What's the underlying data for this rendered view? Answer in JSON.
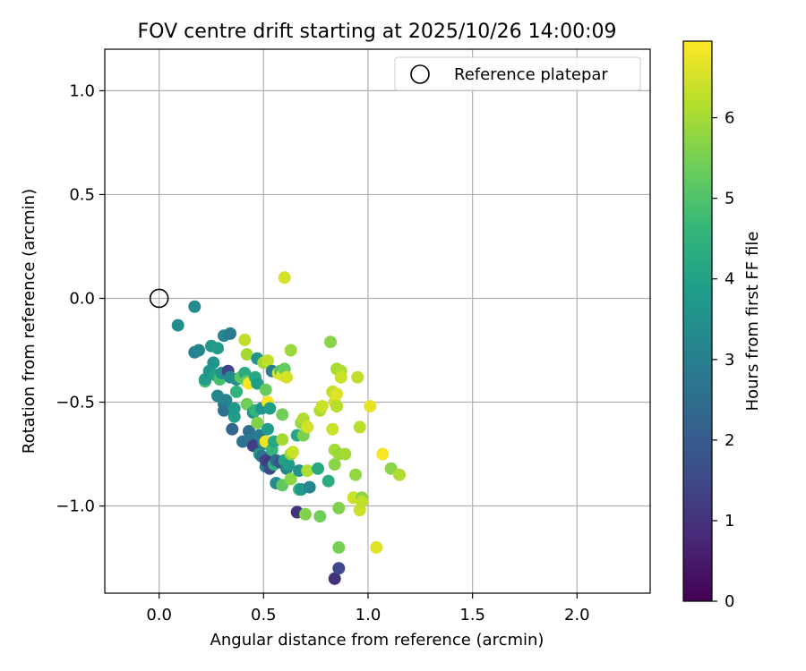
{
  "chart_data": {
    "type": "scatter",
    "title": "FOV centre drift starting at 2025/10/26 14:00:09",
    "xlabel": "Angular distance from reference (arcmin)",
    "ylabel": "Rotation from reference (arcmin)",
    "xlim": [
      -0.26,
      2.35
    ],
    "ylim": [
      -1.42,
      1.2
    ],
    "xticks": [
      0.0,
      0.5,
      1.0,
      1.5,
      2.0
    ],
    "xtick_labels": [
      "0.0",
      "0.5",
      "1.0",
      "1.5",
      "2.0"
    ],
    "yticks": [
      1.0,
      0.5,
      0.0,
      -0.5,
      -1.0
    ],
    "ytick_labels": [
      "1.0",
      "0.5",
      "0.0",
      "−0.5",
      "−1.0"
    ],
    "grid": true,
    "legend": {
      "position": "top-right",
      "entries": [
        {
          "label": "Reference platepar",
          "marker": "open-circle",
          "x": 0.0,
          "y": 0.0
        }
      ]
    },
    "colorbar": {
      "label": "Hours from first FF file",
      "colormap": "viridis",
      "range": [
        0,
        6.95
      ],
      "ticks": [
        0,
        1,
        2,
        3,
        4,
        5,
        6
      ],
      "tick_labels": [
        "0",
        "1",
        "2",
        "3",
        "4",
        "5",
        "6"
      ]
    },
    "series": [
      {
        "name": "FOV centre",
        "fields": [
          "x",
          "y",
          "hours"
        ],
        "points": [
          [
            0.09,
            -0.13,
            3.4
          ],
          [
            0.17,
            -0.04,
            3.3
          ],
          [
            0.17,
            -0.26,
            3.1
          ],
          [
            0.19,
            -0.25,
            3.2
          ],
          [
            0.22,
            -0.4,
            4.9
          ],
          [
            0.22,
            -0.39,
            3.8
          ],
          [
            0.24,
            -0.35,
            3.6
          ],
          [
            0.25,
            -0.23,
            3.7
          ],
          [
            0.26,
            -0.31,
            3.6
          ],
          [
            0.27,
            -0.37,
            4.0
          ],
          [
            0.28,
            -0.24,
            3.8
          ],
          [
            0.28,
            -0.47,
            3.2
          ],
          [
            0.29,
            -0.39,
            4.9
          ],
          [
            0.3,
            -0.36,
            3.5
          ],
          [
            0.31,
            -0.18,
            3.2
          ],
          [
            0.31,
            -0.51,
            3.0
          ],
          [
            0.31,
            -0.54,
            2.6
          ],
          [
            0.32,
            -0.49,
            3.1
          ],
          [
            0.33,
            -0.35,
            1.4
          ],
          [
            0.34,
            -0.17,
            2.9
          ],
          [
            0.34,
            -0.38,
            3.3
          ],
          [
            0.35,
            -0.63,
            2.3
          ],
          [
            0.36,
            -0.57,
            3.9
          ],
          [
            0.36,
            -0.53,
            3.7
          ],
          [
            0.37,
            -0.45,
            4.5
          ],
          [
            0.37,
            -0.39,
            3.4
          ],
          [
            0.39,
            -0.38,
            5.2
          ],
          [
            0.4,
            -0.69,
            2.6
          ],
          [
            0.41,
            -0.2,
            6.3
          ],
          [
            0.41,
            -0.36,
            4.3
          ],
          [
            0.42,
            -0.27,
            6.0
          ],
          [
            0.42,
            -0.51,
            5.4
          ],
          [
            0.42,
            -0.4,
            5.3
          ],
          [
            0.43,
            -0.64,
            2.5
          ],
          [
            0.43,
            -0.41,
            6.9
          ],
          [
            0.44,
            -0.68,
            2.8
          ],
          [
            0.45,
            -0.55,
            3.4
          ],
          [
            0.45,
            -0.71,
            1.3
          ],
          [
            0.46,
            -0.38,
            4.2
          ],
          [
            0.46,
            -0.54,
            4.5
          ],
          [
            0.47,
            -0.29,
            3.6
          ],
          [
            0.47,
            -0.41,
            3.9
          ],
          [
            0.47,
            -0.6,
            5.6
          ],
          [
            0.48,
            -0.66,
            2.9
          ],
          [
            0.48,
            -0.75,
            3.8
          ],
          [
            0.49,
            -0.76,
            2.7
          ],
          [
            0.49,
            -0.53,
            3.6
          ],
          [
            0.5,
            -0.31,
            6.0
          ],
          [
            0.5,
            -0.7,
            3.2
          ],
          [
            0.51,
            -0.44,
            5.3
          ],
          [
            0.51,
            -0.69,
            6.8
          ],
          [
            0.51,
            -0.81,
            3.0
          ],
          [
            0.51,
            -0.78,
            1.4
          ],
          [
            0.52,
            -0.3,
            6.3
          ],
          [
            0.52,
            -0.5,
            6.9
          ],
          [
            0.52,
            -0.63,
            3.8
          ],
          [
            0.53,
            -0.79,
            1.1
          ],
          [
            0.53,
            -0.82,
            1.6
          ],
          [
            0.53,
            -0.53,
            3.9
          ],
          [
            0.54,
            -0.35,
            2.9
          ],
          [
            0.54,
            -0.73,
            4.6
          ],
          [
            0.55,
            -0.8,
            4.4
          ],
          [
            0.55,
            -0.69,
            4.1
          ],
          [
            0.56,
            -0.78,
            2.4
          ],
          [
            0.56,
            -0.89,
            3.3
          ],
          [
            0.57,
            -0.36,
            6.6
          ],
          [
            0.58,
            -0.79,
            1.9
          ],
          [
            0.58,
            -0.35,
            5.1
          ],
          [
            0.59,
            -0.56,
            5.4
          ],
          [
            0.59,
            -0.37,
            6.6
          ],
          [
            0.59,
            -0.68,
            6.0
          ],
          [
            0.59,
            -0.9,
            5.2
          ],
          [
            0.6,
            -0.34,
            5.3
          ],
          [
            0.6,
            0.1,
            6.5
          ],
          [
            0.6,
            -0.78,
            4.0
          ],
          [
            0.61,
            -0.38,
            6.5
          ],
          [
            0.61,
            -0.82,
            3.2
          ],
          [
            0.62,
            -0.8,
            3.8
          ],
          [
            0.63,
            -0.75,
            5.8
          ],
          [
            0.63,
            -0.25,
            5.9
          ],
          [
            0.63,
            -0.87,
            5.7
          ],
          [
            0.64,
            -0.74,
            6.4
          ],
          [
            0.66,
            -0.66,
            4.1
          ],
          [
            0.66,
            -1.03,
            1.0
          ],
          [
            0.67,
            -0.83,
            3.6
          ],
          [
            0.67,
            -0.92,
            4.7
          ],
          [
            0.68,
            -0.6,
            5.8
          ],
          [
            0.68,
            -0.92,
            3.7
          ],
          [
            0.69,
            -0.58,
            6.1
          ],
          [
            0.69,
            -0.66,
            5.5
          ],
          [
            0.7,
            -1.04,
            5.6
          ],
          [
            0.71,
            -0.62,
            6.5
          ],
          [
            0.71,
            -0.83,
            6.1
          ],
          [
            0.72,
            -0.91,
            3.2
          ],
          [
            0.76,
            -0.82,
            4.2
          ],
          [
            0.77,
            -0.54,
            6.1
          ],
          [
            0.77,
            -1.05,
            5.4
          ],
          [
            0.78,
            -0.52,
            6.4
          ],
          [
            0.81,
            -0.88,
            4.3
          ],
          [
            0.82,
            -0.21,
            5.7
          ],
          [
            0.83,
            -0.45,
            6.3
          ],
          [
            0.83,
            -0.63,
            6.4
          ],
          [
            0.84,
            -0.5,
            6.5
          ],
          [
            0.84,
            -0.8,
            5.7
          ],
          [
            0.84,
            -0.73,
            6.0
          ],
          [
            0.84,
            -1.35,
            1.0
          ],
          [
            0.85,
            -0.34,
            6.0
          ],
          [
            0.85,
            -0.46,
            6.6
          ],
          [
            0.85,
            -0.52,
            6.2
          ],
          [
            0.86,
            -1.01,
            5.6
          ],
          [
            0.86,
            -0.75,
            5.9
          ],
          [
            0.86,
            -1.3,
            1.5
          ],
          [
            0.86,
            -1.2,
            5.5
          ],
          [
            0.87,
            -0.35,
            6.1
          ],
          [
            0.87,
            -0.38,
            6.4
          ],
          [
            0.89,
            -0.75,
            6.0
          ],
          [
            0.93,
            -0.96,
            6.4
          ],
          [
            0.94,
            -0.85,
            5.8
          ],
          [
            0.95,
            -0.38,
            6.3
          ],
          [
            0.96,
            -1.02,
            6.4
          ],
          [
            0.96,
            -0.62,
            6.2
          ],
          [
            0.97,
            -0.96,
            5.7
          ],
          [
            0.97,
            -0.98,
            6.3
          ],
          [
            1.01,
            -0.52,
            6.7
          ],
          [
            1.04,
            -1.2,
            6.6
          ],
          [
            1.07,
            -0.75,
            6.9
          ],
          [
            1.11,
            -0.82,
            5.7
          ],
          [
            1.15,
            -0.85,
            6.1
          ]
        ]
      }
    ]
  }
}
